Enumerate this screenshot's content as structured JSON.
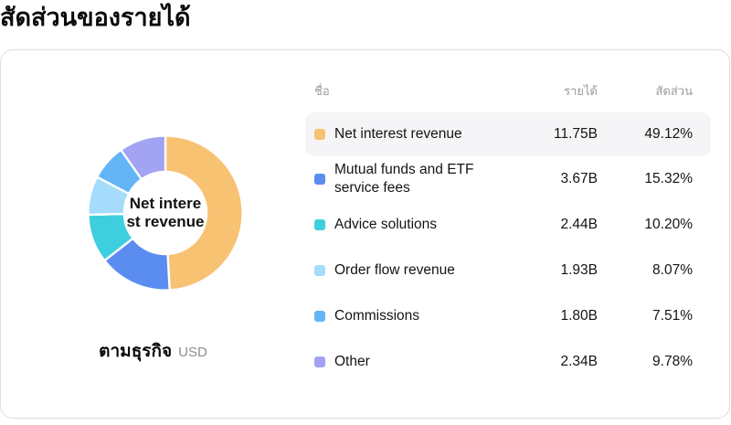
{
  "page_title": "สัดส่วนของรายได้",
  "card": {
    "chart_center_label_lines": [
      "Net intere",
      "st revenue"
    ],
    "chart_footer": {
      "label": "ตามธุรกิจ",
      "unit": "USD"
    },
    "table": {
      "headers": {
        "name": "ชื่อ",
        "revenue": "รายได้",
        "share": "สัดส่วน"
      },
      "rows": [
        {
          "name": "Net interest revenue",
          "revenue": "11.75B",
          "share": "49.12%",
          "color": "#f8c273",
          "highlighted": true
        },
        {
          "name": "Mutual funds and ETF service fees",
          "revenue": "3.67B",
          "share": "15.32%",
          "color": "#5b8df0",
          "highlighted": false
        },
        {
          "name": "Advice solutions",
          "revenue": "2.44B",
          "share": "10.20%",
          "color": "#3ecfde",
          "highlighted": false
        },
        {
          "name": "Order flow revenue",
          "revenue": "1.93B",
          "share": "8.07%",
          "color": "#a5dcfb",
          "highlighted": false
        },
        {
          "name": "Commissions",
          "revenue": "1.80B",
          "share": "7.51%",
          "color": "#64b5f6",
          "highlighted": false
        },
        {
          "name": "Other",
          "revenue": "2.34B",
          "share": "9.78%",
          "color": "#a2a3f3",
          "highlighted": false
        }
      ]
    }
  },
  "chart_data": {
    "type": "pie",
    "subtype": "donut",
    "title": "สัดส่วนของรายได้",
    "center_label": "Net interest revenue",
    "unit": "USD",
    "footer_label": "ตามธุรกิจ",
    "categories": [
      "Net interest revenue",
      "Mutual funds and ETF service fees",
      "Advice solutions",
      "Order flow revenue",
      "Commissions",
      "Other"
    ],
    "values_percent": [
      49.12,
      15.32,
      10.2,
      8.07,
      7.51,
      9.78
    ],
    "values_revenue_label": [
      "11.75B",
      "3.67B",
      "2.44B",
      "1.93B",
      "1.80B",
      "2.34B"
    ],
    "colors": [
      "#f8c273",
      "#5b8df0",
      "#3ecfde",
      "#a5dcfb",
      "#64b5f6",
      "#a2a3f3"
    ],
    "start_angle_deg": -90,
    "direction": "clockwise",
    "legend_position": "right-table"
  }
}
